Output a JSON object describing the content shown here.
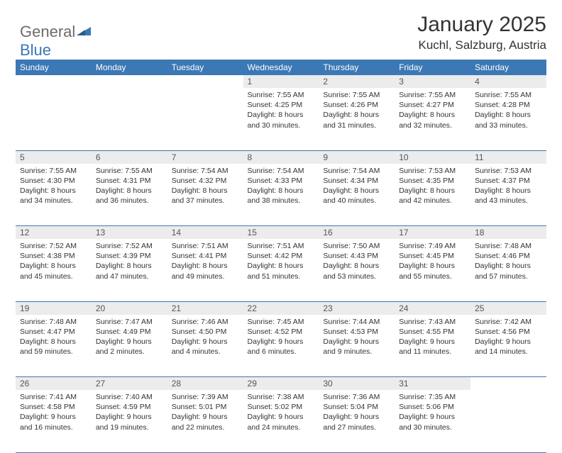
{
  "logo": {
    "part1": "General",
    "part2": "Blue"
  },
  "header": {
    "title": "January 2025",
    "location": "Kuchl, Salzburg, Austria"
  },
  "colors": {
    "brand_blue": "#3b78b5",
    "num_bg": "#ececec",
    "text": "#333333",
    "logo_gray": "#6b6b6b"
  },
  "weekdays": [
    "Sunday",
    "Monday",
    "Tuesday",
    "Wednesday",
    "Thursday",
    "Friday",
    "Saturday"
  ],
  "weeks": [
    [
      null,
      null,
      null,
      {
        "n": "1",
        "sr": "7:55 AM",
        "ss": "4:25 PM",
        "dl1": "8 hours",
        "dl2": "30 minutes."
      },
      {
        "n": "2",
        "sr": "7:55 AM",
        "ss": "4:26 PM",
        "dl1": "8 hours",
        "dl2": "31 minutes."
      },
      {
        "n": "3",
        "sr": "7:55 AM",
        "ss": "4:27 PM",
        "dl1": "8 hours",
        "dl2": "32 minutes."
      },
      {
        "n": "4",
        "sr": "7:55 AM",
        "ss": "4:28 PM",
        "dl1": "8 hours",
        "dl2": "33 minutes."
      }
    ],
    [
      {
        "n": "5",
        "sr": "7:55 AM",
        "ss": "4:30 PM",
        "dl1": "8 hours",
        "dl2": "34 minutes."
      },
      {
        "n": "6",
        "sr": "7:55 AM",
        "ss": "4:31 PM",
        "dl1": "8 hours",
        "dl2": "36 minutes."
      },
      {
        "n": "7",
        "sr": "7:54 AM",
        "ss": "4:32 PM",
        "dl1": "8 hours",
        "dl2": "37 minutes."
      },
      {
        "n": "8",
        "sr": "7:54 AM",
        "ss": "4:33 PM",
        "dl1": "8 hours",
        "dl2": "38 minutes."
      },
      {
        "n": "9",
        "sr": "7:54 AM",
        "ss": "4:34 PM",
        "dl1": "8 hours",
        "dl2": "40 minutes."
      },
      {
        "n": "10",
        "sr": "7:53 AM",
        "ss": "4:35 PM",
        "dl1": "8 hours",
        "dl2": "42 minutes."
      },
      {
        "n": "11",
        "sr": "7:53 AM",
        "ss": "4:37 PM",
        "dl1": "8 hours",
        "dl2": "43 minutes."
      }
    ],
    [
      {
        "n": "12",
        "sr": "7:52 AM",
        "ss": "4:38 PM",
        "dl1": "8 hours",
        "dl2": "45 minutes."
      },
      {
        "n": "13",
        "sr": "7:52 AM",
        "ss": "4:39 PM",
        "dl1": "8 hours",
        "dl2": "47 minutes."
      },
      {
        "n": "14",
        "sr": "7:51 AM",
        "ss": "4:41 PM",
        "dl1": "8 hours",
        "dl2": "49 minutes."
      },
      {
        "n": "15",
        "sr": "7:51 AM",
        "ss": "4:42 PM",
        "dl1": "8 hours",
        "dl2": "51 minutes."
      },
      {
        "n": "16",
        "sr": "7:50 AM",
        "ss": "4:43 PM",
        "dl1": "8 hours",
        "dl2": "53 minutes."
      },
      {
        "n": "17",
        "sr": "7:49 AM",
        "ss": "4:45 PM",
        "dl1": "8 hours",
        "dl2": "55 minutes."
      },
      {
        "n": "18",
        "sr": "7:48 AM",
        "ss": "4:46 PM",
        "dl1": "8 hours",
        "dl2": "57 minutes."
      }
    ],
    [
      {
        "n": "19",
        "sr": "7:48 AM",
        "ss": "4:47 PM",
        "dl1": "8 hours",
        "dl2": "59 minutes."
      },
      {
        "n": "20",
        "sr": "7:47 AM",
        "ss": "4:49 PM",
        "dl1": "9 hours",
        "dl2": "2 minutes."
      },
      {
        "n": "21",
        "sr": "7:46 AM",
        "ss": "4:50 PM",
        "dl1": "9 hours",
        "dl2": "4 minutes."
      },
      {
        "n": "22",
        "sr": "7:45 AM",
        "ss": "4:52 PM",
        "dl1": "9 hours",
        "dl2": "6 minutes."
      },
      {
        "n": "23",
        "sr": "7:44 AM",
        "ss": "4:53 PM",
        "dl1": "9 hours",
        "dl2": "9 minutes."
      },
      {
        "n": "24",
        "sr": "7:43 AM",
        "ss": "4:55 PM",
        "dl1": "9 hours",
        "dl2": "11 minutes."
      },
      {
        "n": "25",
        "sr": "7:42 AM",
        "ss": "4:56 PM",
        "dl1": "9 hours",
        "dl2": "14 minutes."
      }
    ],
    [
      {
        "n": "26",
        "sr": "7:41 AM",
        "ss": "4:58 PM",
        "dl1": "9 hours",
        "dl2": "16 minutes."
      },
      {
        "n": "27",
        "sr": "7:40 AM",
        "ss": "4:59 PM",
        "dl1": "9 hours",
        "dl2": "19 minutes."
      },
      {
        "n": "28",
        "sr": "7:39 AM",
        "ss": "5:01 PM",
        "dl1": "9 hours",
        "dl2": "22 minutes."
      },
      {
        "n": "29",
        "sr": "7:38 AM",
        "ss": "5:02 PM",
        "dl1": "9 hours",
        "dl2": "24 minutes."
      },
      {
        "n": "30",
        "sr": "7:36 AM",
        "ss": "5:04 PM",
        "dl1": "9 hours",
        "dl2": "27 minutes."
      },
      {
        "n": "31",
        "sr": "7:35 AM",
        "ss": "5:06 PM",
        "dl1": "9 hours",
        "dl2": "30 minutes."
      },
      null
    ]
  ],
  "labels": {
    "sunrise": "Sunrise: ",
    "sunset": "Sunset: ",
    "daylight": "Daylight: ",
    "and": "and "
  }
}
